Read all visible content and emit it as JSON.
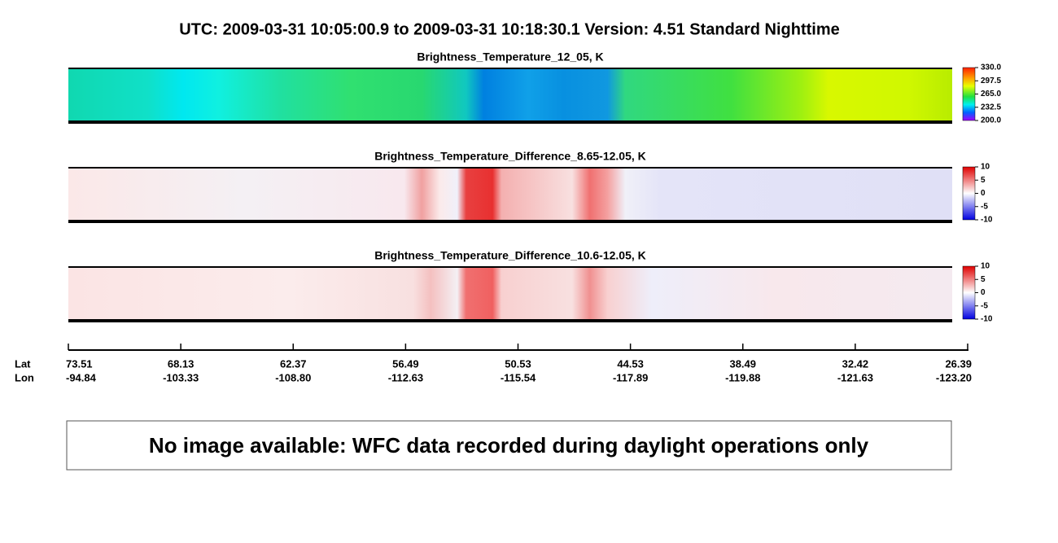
{
  "title": "UTC:  2009-03-31   10:05:00.9  to  2009-03-31   10:18:30.1    Version: 4.51  Standard Nighttime",
  "panels": [
    {
      "title": "Brightness_Temperature_12_05, K",
      "colorbar_ticks": [
        "330.0",
        "297.5",
        "265.0",
        "232.5",
        "200.0"
      ]
    },
    {
      "title": "Brightness_Temperature_Difference_8.65-12.05, K",
      "colorbar_ticks": [
        "10",
        "5",
        "0",
        "-5",
        "-10"
      ]
    },
    {
      "title": "Brightness_Temperature_Difference_10.6-12.05, K",
      "colorbar_ticks": [
        "10",
        "5",
        "0",
        "-5",
        "-10"
      ]
    }
  ],
  "axis": {
    "row_labels": [
      "Lat",
      "Lon"
    ],
    "ticks": [
      {
        "lat": "73.51",
        "lon": "-94.84"
      },
      {
        "lat": "68.13",
        "lon": "-103.33"
      },
      {
        "lat": "62.37",
        "lon": "-108.80"
      },
      {
        "lat": "56.49",
        "lon": "-112.63"
      },
      {
        "lat": "50.53",
        "lon": "-115.54"
      },
      {
        "lat": "44.53",
        "lon": "-117.89"
      },
      {
        "lat": "38.49",
        "lon": "-119.88"
      },
      {
        "lat": "32.42",
        "lon": "-121.63"
      },
      {
        "lat": "26.39",
        "lon": "-123.20"
      }
    ]
  },
  "notice": "No image available: WFC data recorded during daylight operations only"
}
